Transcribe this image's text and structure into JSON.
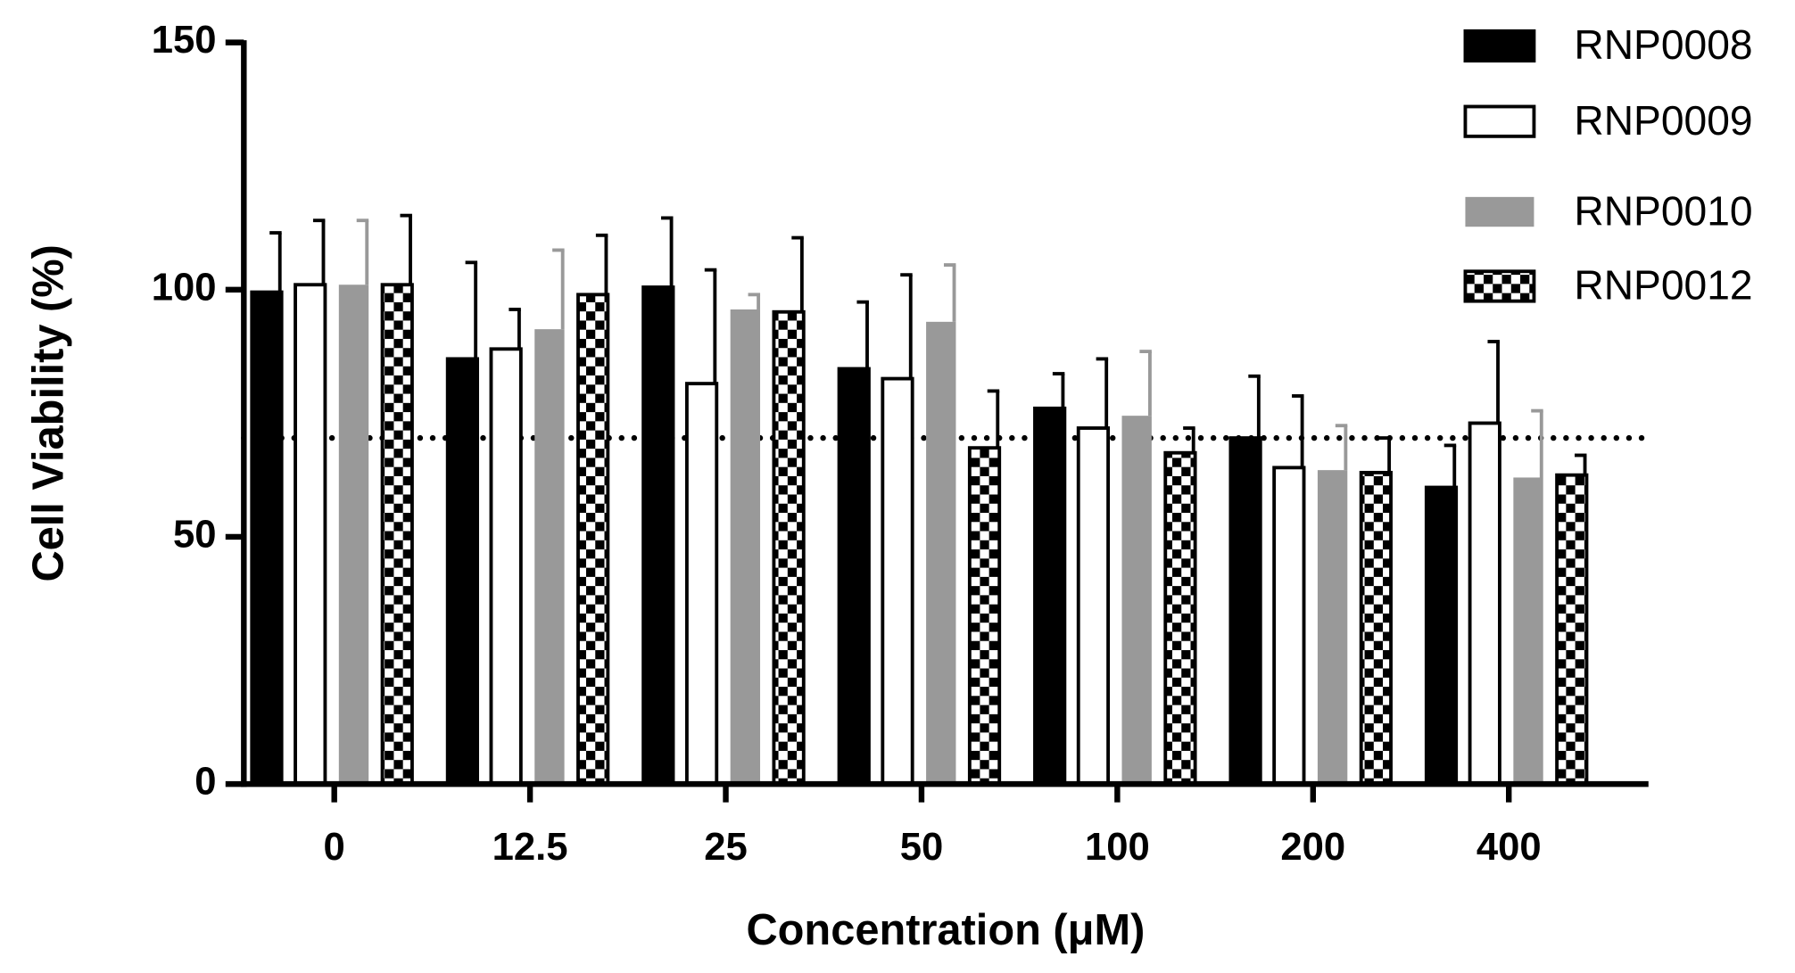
{
  "chart_data": {
    "type": "bar",
    "x_label": "Concentration (μM)",
    "y_label": "Cell Viability (%)",
    "categories": [
      "0",
      "12.5",
      "25",
      "50",
      "100",
      "200",
      "400"
    ],
    "series": [
      {
        "name": "RNP0008",
        "color": "#000000",
        "values": [
          99.5,
          86,
          100.5,
          84,
          76,
          70,
          60
        ],
        "errors": [
          12,
          19.5,
          14,
          13.5,
          7,
          12.5,
          8.5
        ]
      },
      {
        "name": "RNP0009",
        "color": "#ffffff",
        "values": [
          101,
          88,
          81,
          82,
          72,
          64,
          73
        ],
        "errors": [
          13,
          8,
          23,
          21,
          14,
          14.5,
          16.5
        ]
      },
      {
        "name": "RNP0010",
        "color": "#999999",
        "values": [
          101,
          92,
          96,
          93.5,
          74.5,
          63.5,
          62
        ],
        "errors": [
          13,
          16,
          3,
          11.5,
          13,
          9,
          13.5
        ]
      },
      {
        "name": "RNP0012",
        "color": "#000000",
        "pattern": "checkerboard",
        "values": [
          101,
          99,
          95.5,
          68,
          67,
          63,
          62.5
        ],
        "errors": [
          14,
          12,
          15,
          11.5,
          5,
          7,
          4
        ]
      }
    ],
    "reference_line": 70,
    "ylim": [
      0,
      150
    ],
    "yticks": [
      0,
      50,
      100,
      150
    ],
    "legend": "top right"
  }
}
